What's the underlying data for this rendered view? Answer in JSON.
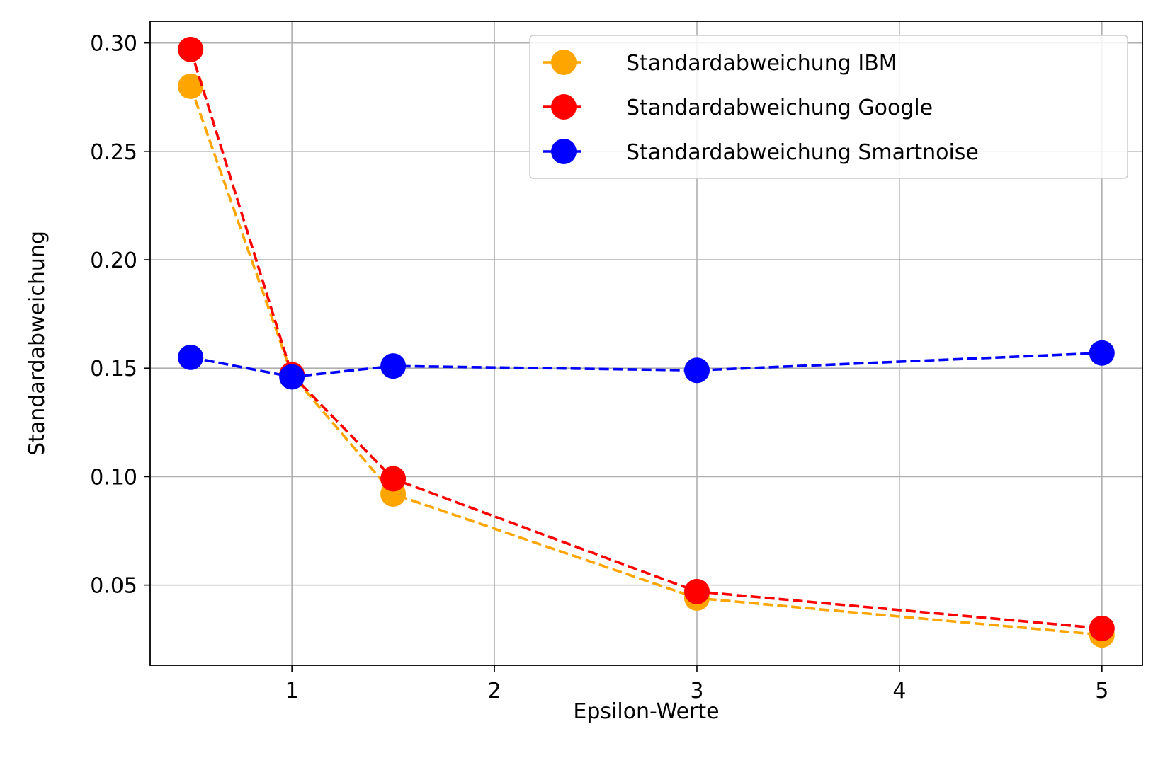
{
  "chart_data": {
    "type": "line",
    "xlabel": "Epsilon-Werte",
    "ylabel": "Standardabweichung",
    "xlim": [
      0.3,
      5.2
    ],
    "ylim": [
      0.013,
      0.31
    ],
    "xticks": [
      1,
      2,
      3,
      4,
      5
    ],
    "xtick_labels": [
      "1",
      "2",
      "3",
      "4",
      "5"
    ],
    "yticks": [
      0.05,
      0.1,
      0.15,
      0.2,
      0.25,
      0.3
    ],
    "ytick_labels": [
      "0.05",
      "0.10",
      "0.15",
      "0.20",
      "0.25",
      "0.30"
    ],
    "grid": true,
    "legend_position": "top-right",
    "x": [
      0.5,
      1,
      1.5,
      3,
      5
    ],
    "series": [
      {
        "name": "Standardabweichung IBM",
        "color": "#FFA500",
        "values": [
          0.28,
          0.147,
          0.092,
          0.044,
          0.027
        ]
      },
      {
        "name": "Standardabweichung Google",
        "color": "#FF0000",
        "values": [
          0.297,
          0.147,
          0.099,
          0.047,
          0.03
        ]
      },
      {
        "name": "Standardabweichung Smartnoise",
        "color": "#0000FF",
        "values": [
          0.155,
          0.146,
          0.151,
          0.149,
          0.157
        ]
      }
    ]
  }
}
